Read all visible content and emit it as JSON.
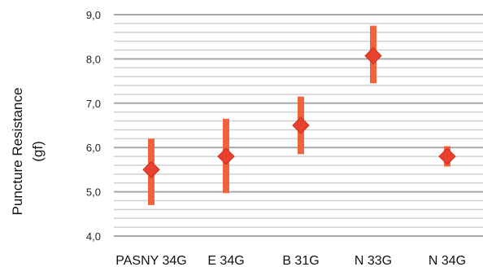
{
  "chart_data": {
    "type": "scatter",
    "title": "",
    "xlabel": "",
    "ylabel_line1": "Puncture Resistance",
    "ylabel_line2": "(gf)",
    "ylim": [
      4.0,
      9.0
    ],
    "yticks": [
      "4,0",
      "5,0",
      "6,0",
      "7,0",
      "8,0",
      "9,0"
    ],
    "categories": [
      "PASNY 34G",
      "E 34G",
      "B 31G",
      "N 33G",
      "N 34G"
    ],
    "series": [
      {
        "values": [
          5.5,
          5.8,
          6.5,
          8.07,
          5.8
        ],
        "error_low": [
          4.7,
          4.97,
          5.85,
          7.45,
          5.57
        ],
        "error_high": [
          6.2,
          6.65,
          7.15,
          8.75,
          6.03
        ]
      }
    ],
    "marker_color": "#e8412e",
    "errorbar_color": "#f0643c",
    "grid": true,
    "legend": "none"
  }
}
